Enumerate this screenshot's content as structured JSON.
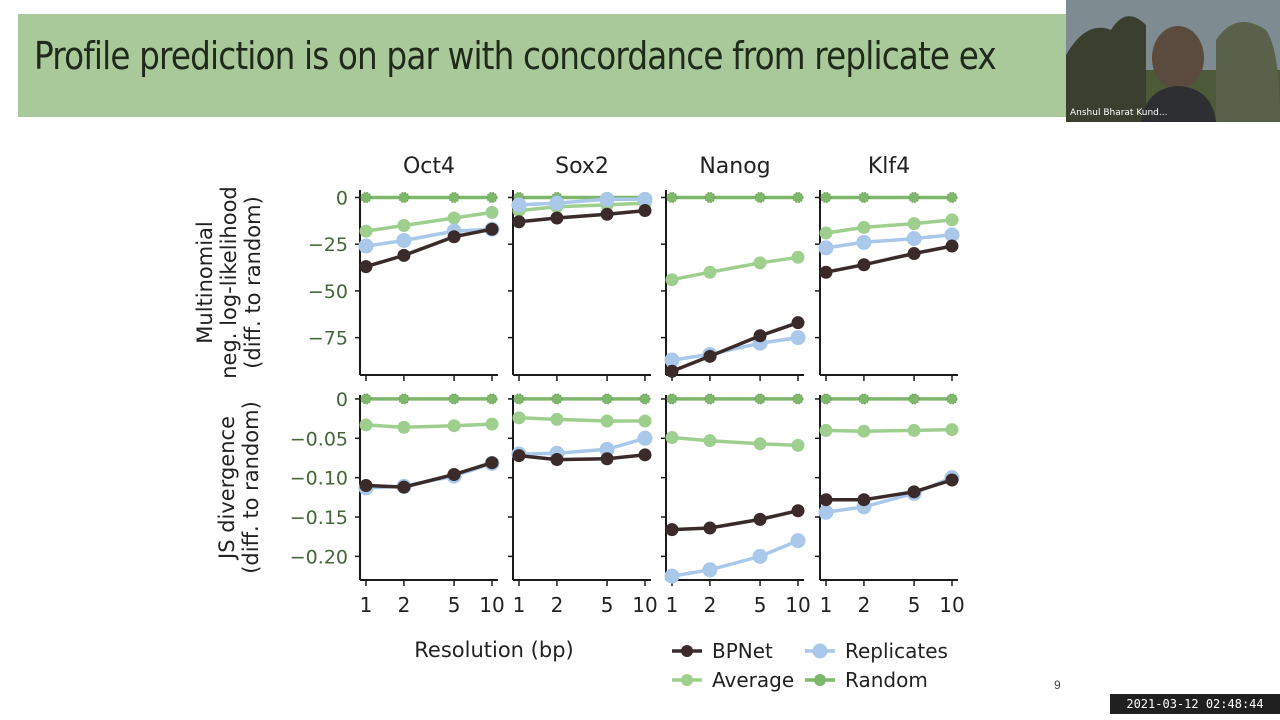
{
  "slide": {
    "title": "Profile prediction is on par with concordance from replicate ex",
    "page_number": "9",
    "timestamp": "2021-03-12 02:48:44",
    "title_band_color": "#a9c99a"
  },
  "webcam": {
    "participant_name": "Anshul Bharat Kund..."
  },
  "chart_data": {
    "type": "line",
    "panels": [
      "Oct4",
      "Sox2",
      "Nanog",
      "Klf4"
    ],
    "x": [
      1,
      2,
      5,
      10
    ],
    "xticklabels": [
      "1",
      "2",
      "5",
      "10"
    ],
    "xscale": "log",
    "xlabel": "Resolution (bp)",
    "legend_position": "bottom-right",
    "series_styles": [
      {
        "name": "BPNet",
        "color": "#3b2a2a"
      },
      {
        "name": "Replicates",
        "color": "#a9c8ea"
      },
      {
        "name": "Average",
        "color": "#9fcf8f"
      },
      {
        "name": "Random",
        "color": "#7fb86b"
      }
    ],
    "rows": [
      {
        "ylabel_lines": [
          "Multinomial",
          "neg. log-likelihood",
          "(diff. to random)"
        ],
        "ylim": [
          -95,
          4
        ],
        "yticks": [
          0,
          -25,
          -50,
          -75
        ],
        "yticklabels": [
          "0",
          "−25",
          "−50",
          "−75"
        ],
        "data": {
          "Oct4": {
            "BPNet": [
              -37,
              -31,
              -21,
              -17
            ],
            "Replicates": [
              -26,
              -23,
              -18,
              -17
            ],
            "Average": [
              -18,
              -15,
              -11,
              -8
            ],
            "Random": [
              0,
              0,
              0,
              0
            ]
          },
          "Sox2": {
            "BPNet": [
              -13,
              -11,
              -9,
              -7
            ],
            "Replicates": [
              -4,
              -3,
              -1,
              -1
            ],
            "Average": [
              -7,
              -5,
              -4,
              -3
            ],
            "Random": [
              0,
              0,
              0,
              0
            ]
          },
          "Nanog": {
            "BPNet": [
              -93,
              -85,
              -74,
              -67
            ],
            "Replicates": [
              -87,
              -84,
              -78,
              -75
            ],
            "Average": [
              -44,
              -40,
              -35,
              -32
            ],
            "Random": [
              0,
              0,
              0,
              0
            ]
          },
          "Klf4": {
            "BPNet": [
              -40,
              -36,
              -30,
              -26
            ],
            "Replicates": [
              -27,
              -24,
              -22,
              -20
            ],
            "Average": [
              -19,
              -16,
              -14,
              -12
            ],
            "Random": [
              0,
              0,
              0,
              0
            ]
          }
        }
      },
      {
        "ylabel_lines": [
          "JS divergence",
          "(diff. to random)"
        ],
        "ylim": [
          -0.23,
          0.005
        ],
        "yticks": [
          0,
          -0.05,
          -0.1,
          -0.15,
          -0.2
        ],
        "yticklabels": [
          "0",
          "−0.05",
          "−0.10",
          "−0.15",
          "−0.20"
        ],
        "data": {
          "Oct4": {
            "BPNet": [
              -0.11,
              -0.112,
              -0.096,
              -0.081
            ],
            "Replicates": [
              -0.113,
              -0.111,
              -0.098,
              -0.082
            ],
            "Average": [
              -0.033,
              -0.036,
              -0.034,
              -0.032
            ],
            "Random": [
              0,
              0,
              0,
              0
            ]
          },
          "Sox2": {
            "BPNet": [
              -0.072,
              -0.077,
              -0.076,
              -0.071
            ],
            "Replicates": [
              -0.07,
              -0.069,
              -0.064,
              -0.05
            ],
            "Average": [
              -0.024,
              -0.026,
              -0.028,
              -0.028
            ],
            "Random": [
              0,
              0,
              0,
              0
            ]
          },
          "Nanog": {
            "BPNet": [
              -0.166,
              -0.164,
              -0.153,
              -0.142
            ],
            "Replicates": [
              -0.225,
              -0.217,
              -0.2,
              -0.18
            ],
            "Average": [
              -0.049,
              -0.053,
              -0.057,
              -0.059
            ],
            "Random": [
              0,
              0,
              0,
              0
            ]
          },
          "Klf4": {
            "BPNet": [
              -0.128,
              -0.128,
              -0.118,
              -0.103
            ],
            "Replicates": [
              -0.144,
              -0.137,
              -0.12,
              -0.1
            ],
            "Average": [
              -0.04,
              -0.041,
              -0.04,
              -0.039
            ],
            "Random": [
              0,
              0,
              0,
              0
            ]
          }
        }
      }
    ]
  }
}
